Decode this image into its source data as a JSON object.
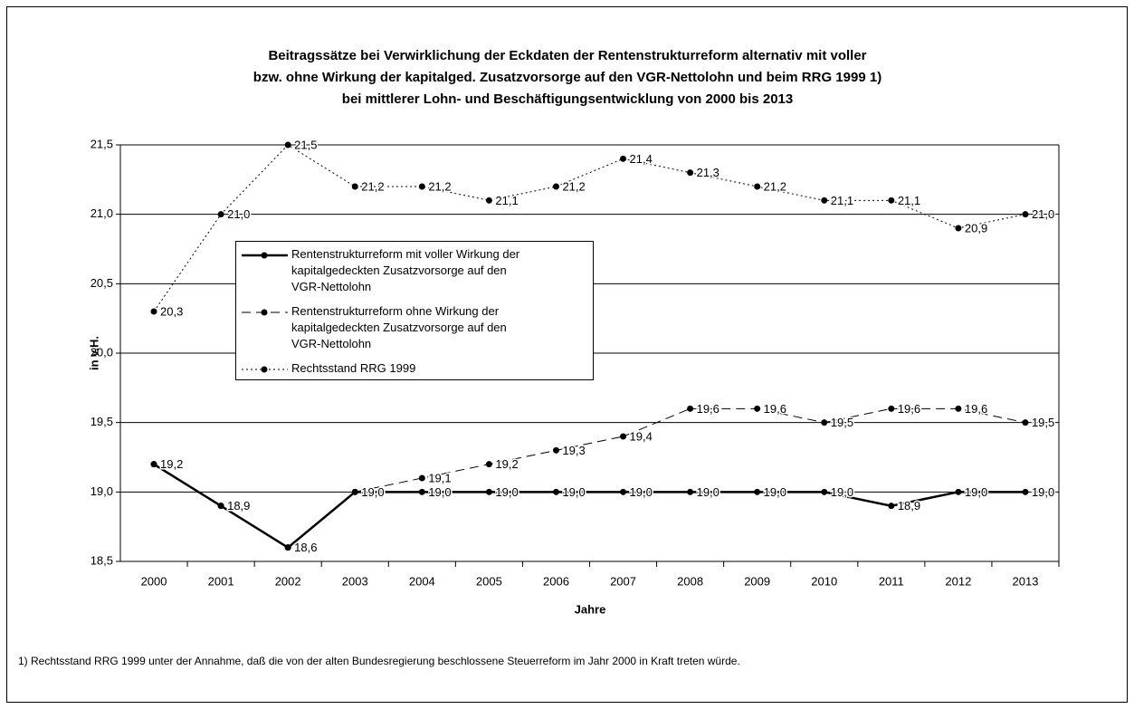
{
  "chart_data": {
    "type": "line",
    "title": [
      "Beitragssätze bei Verwirklichung der Eckdaten der Rentenstrukturreform alternativ mit voller",
      "bzw. ohne Wirkung der kapitalged. Zusatzvorsorge auf den VGR-Nettolohn und beim RRG 1999 1)",
      "bei mittlerer Lohn- und Beschäftigungsentwicklung von 2000 bis 2013"
    ],
    "y_label": "in v.H.",
    "x_label": "Jahre",
    "footnote": "1) Rechtsstand RRG 1999 unter der Annahme, daß die von der alten Bundesregierung beschlossene Steuerreform im Jahr 2000 in Kraft treten würde.",
    "categories": [
      "2000",
      "2001",
      "2002",
      "2003",
      "2004",
      "2005",
      "2006",
      "2007",
      "2008",
      "2009",
      "2010",
      "2011",
      "2012",
      "2013"
    ],
    "ylim": [
      18.5,
      21.5
    ],
    "yticks": [
      {
        "value": 18.5,
        "label": "18,5"
      },
      {
        "value": 19,
        "label": "19,0"
      },
      {
        "value": 19.5,
        "label": "19,5"
      },
      {
        "value": 20,
        "label": "20,0"
      },
      {
        "value": 20.5,
        "label": "20,5"
      },
      {
        "value": 21,
        "label": "21,0"
      },
      {
        "value": 21.5,
        "label": "21,5"
      }
    ],
    "grid": true,
    "series": [
      {
        "name": "Rentenstrukturreform mit voller Wirkung der kapitalgedeckten Zusatzvorsorge auf den VGR-Nettolohn",
        "color": "#000000",
        "line_style": "solid",
        "values": [
          19.2,
          18.9,
          18.6,
          19.0,
          19.0,
          19.0,
          19.0,
          19.0,
          19.0,
          19.0,
          19.0,
          18.9,
          19.0,
          19.0
        ],
        "value_labels": [
          "19,2",
          "18,9",
          "18,6",
          "19,0",
          "19,0",
          "19,0",
          "19,0",
          "19,0",
          "19,0",
          "19,0",
          "19,0",
          "18,9",
          "19,0",
          "19,0"
        ]
      },
      {
        "name": "Rentenstrukturreform ohne Wirkung der kapitalgedeckten Zusatzvorsorge auf den VGR-Nettolohn",
        "color": "#000000",
        "line_style": "dashed",
        "values": [
          19.2,
          18.9,
          18.6,
          19.0,
          19.1,
          19.2,
          19.3,
          19.4,
          19.6,
          19.6,
          19.5,
          19.6,
          19.6,
          19.5
        ],
        "value_labels": [
          "19,2",
          "18,9",
          "18,6",
          "19,0",
          "19,1",
          "19,2",
          "19,3",
          "19,4",
          "19,6",
          "19,6",
          "19,5",
          "19,6",
          "19,6",
          "19,5"
        ]
      },
      {
        "name": "Rechtsstand RRG 1999",
        "color": "#000000",
        "line_style": "dotted",
        "values": [
          20.3,
          21.0,
          21.5,
          21.2,
          21.2,
          21.1,
          21.2,
          21.4,
          21.3,
          21.2,
          21.1,
          21.1,
          20.9,
          21.0
        ],
        "value_labels": [
          "20,3",
          "21,0",
          "21,5",
          "21,2",
          "21,2",
          "21,1",
          "21,2",
          "21,4",
          "21,3",
          "21,2",
          "21,1",
          "21,1",
          "20,9",
          "21,0"
        ]
      }
    ]
  }
}
